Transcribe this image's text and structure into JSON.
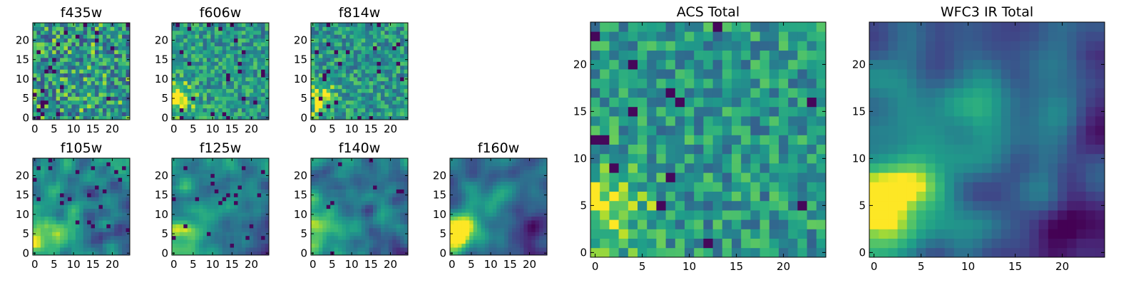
{
  "figure": {
    "colormap": "viridis",
    "colors": [
      "#440154",
      "#3b528b",
      "#21918c",
      "#5ec962",
      "#fde725"
    ]
  },
  "chart_data": [
    {
      "type": "heatmap",
      "title": "f435w",
      "grid": "25x25",
      "pattern": "noise",
      "seed": 11,
      "xlim": [
        0,
        24
      ],
      "ylim": [
        0,
        24
      ],
      "xticks": [
        0,
        5,
        10,
        15,
        20
      ],
      "yticks": [
        0,
        5,
        10,
        15,
        20
      ]
    },
    {
      "type": "heatmap",
      "title": "f606w",
      "grid": "25x25",
      "pattern": "noise_blob",
      "seed": 23,
      "xlim": [
        0,
        24
      ],
      "ylim": [
        0,
        24
      ],
      "xticks": [
        0,
        5,
        10,
        15,
        20
      ],
      "yticks": [
        0,
        5,
        10,
        15,
        20
      ]
    },
    {
      "type": "heatmap",
      "title": "f814w",
      "grid": "25x25",
      "pattern": "noise_blob",
      "seed": 37,
      "xlim": [
        0,
        24
      ],
      "ylim": [
        0,
        24
      ],
      "xticks": [
        0,
        5,
        10,
        15,
        20
      ],
      "yticks": [
        0,
        5,
        10,
        15,
        20
      ]
    },
    {
      "type": "heatmap",
      "title": "f105w",
      "grid": "25x25",
      "pattern": "smooth_blob",
      "seed": 41,
      "xlim": [
        0,
        24
      ],
      "ylim": [
        0,
        24
      ],
      "xticks": [
        0,
        5,
        10,
        15,
        20
      ],
      "yticks": [
        0,
        5,
        10,
        15,
        20
      ]
    },
    {
      "type": "heatmap",
      "title": "f125w",
      "grid": "25x25",
      "pattern": "smooth_blob",
      "seed": 53,
      "xlim": [
        0,
        24
      ],
      "ylim": [
        0,
        24
      ],
      "xticks": [
        0,
        5,
        10,
        15,
        20
      ],
      "yticks": [
        0,
        5,
        10,
        15,
        20
      ]
    },
    {
      "type": "heatmap",
      "title": "f140w",
      "grid": "25x25",
      "pattern": "smooth_blob",
      "seed": 67,
      "xlim": [
        0,
        24
      ],
      "ylim": [
        0,
        24
      ],
      "xticks": [
        0,
        5,
        10,
        15,
        20
      ],
      "yticks": [
        0,
        5,
        10,
        15,
        20
      ]
    },
    {
      "type": "heatmap",
      "title": "f160w",
      "grid": "25x25",
      "pattern": "ir_blob",
      "seed": 71,
      "xlim": [
        0,
        24
      ],
      "ylim": [
        0,
        24
      ],
      "xticks": [
        0,
        5,
        10,
        15,
        20
      ],
      "yticks": [
        0,
        5,
        10,
        15,
        20
      ]
    },
    {
      "type": "heatmap",
      "title": "ACS Total",
      "grid": "25x25",
      "pattern": "noise_blob",
      "seed": 83,
      "xlim": [
        0,
        24
      ],
      "ylim": [
        0,
        24
      ],
      "xticks": [
        0,
        5,
        10,
        15,
        20
      ],
      "yticks": [
        0,
        5,
        10,
        15,
        20
      ]
    },
    {
      "type": "heatmap",
      "title": "WFC3 IR Total",
      "grid": "25x25",
      "pattern": "ir_blob",
      "seed": 97,
      "xlim": [
        0,
        24
      ],
      "ylim": [
        0,
        24
      ],
      "xticks": [
        0,
        5,
        10,
        15,
        20
      ],
      "yticks": [
        0,
        5,
        10,
        15,
        20
      ]
    }
  ]
}
